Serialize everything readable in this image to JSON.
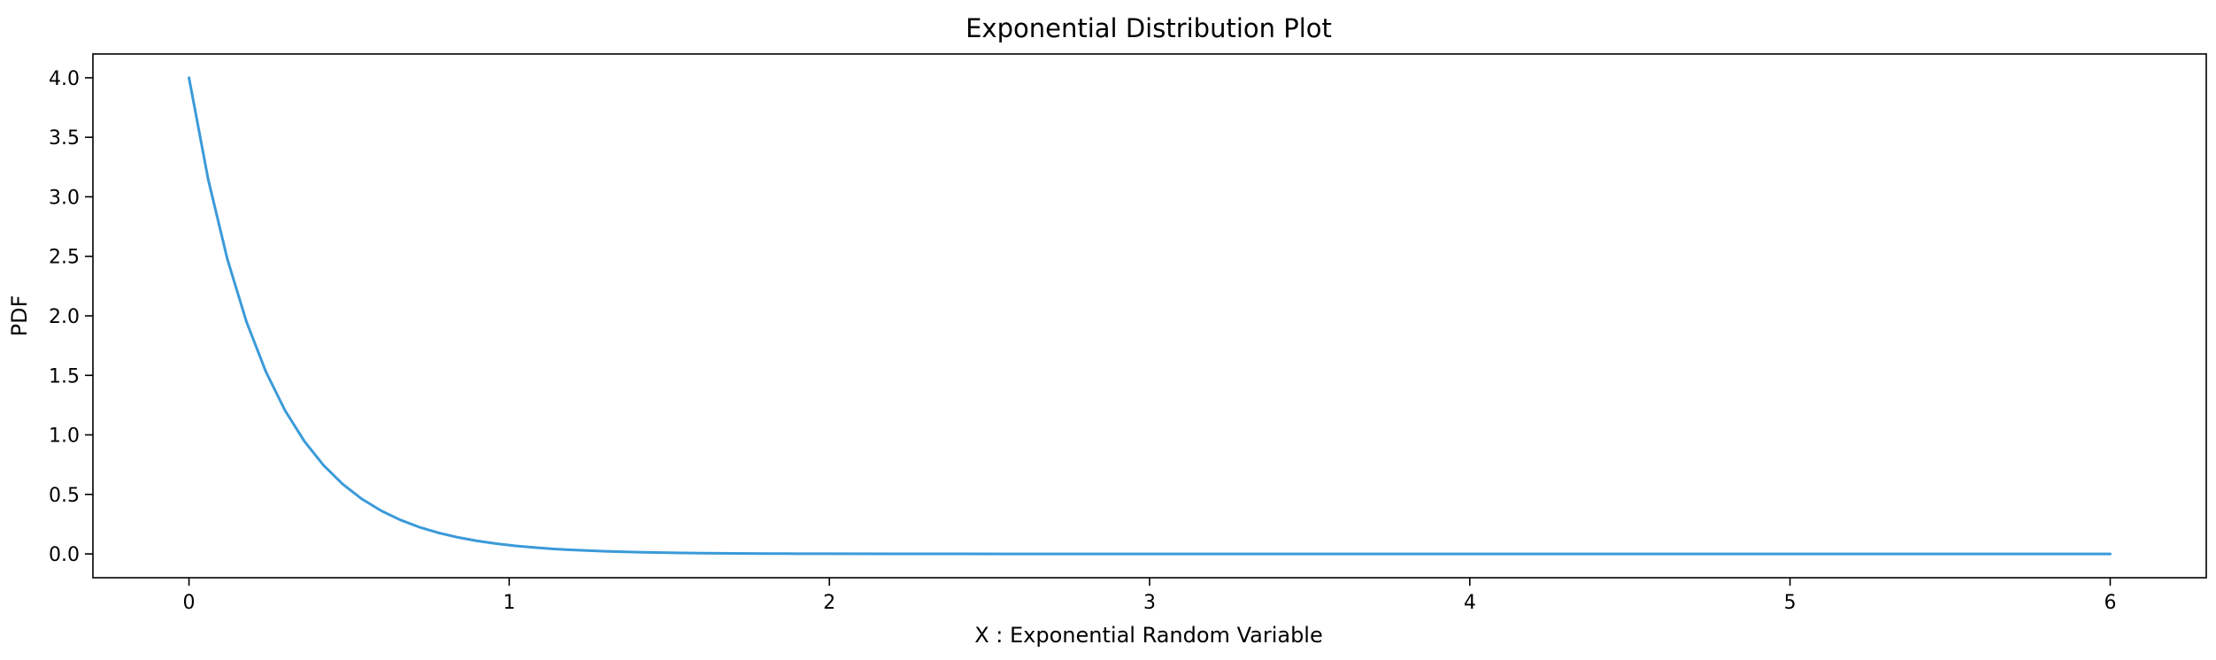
{
  "chart_data": {
    "type": "line",
    "title": "Exponential Distribution Plot",
    "xlabel": "X : Exponential Random Variable",
    "ylabel": "PDF",
    "xlim": [
      -0.3,
      6.3
    ],
    "ylim": [
      -0.2,
      4.2
    ],
    "xticks": [
      0,
      1,
      2,
      3,
      4,
      5,
      6
    ],
    "xtick_labels": [
      "0",
      "1",
      "2",
      "3",
      "4",
      "5",
      "6"
    ],
    "yticks": [
      0.0,
      0.5,
      1.0,
      1.5,
      2.0,
      2.5,
      3.0,
      3.5,
      4.0
    ],
    "ytick_labels": [
      "0.0",
      "0.5",
      "1.0",
      "1.5",
      "2.0",
      "2.5",
      "3.0",
      "3.5",
      "4.0"
    ],
    "grid": false,
    "series": [
      {
        "color": "#3a9ad9",
        "x": [
          0.0,
          0.06,
          0.12,
          0.18,
          0.24,
          0.3,
          0.36,
          0.42,
          0.48,
          0.54,
          0.6,
          0.66,
          0.72,
          0.78,
          0.84,
          0.9,
          0.96,
          1.02,
          1.08,
          1.14,
          1.2,
          1.3,
          1.4,
          1.5,
          1.6,
          1.7,
          1.8,
          1.9,
          2.0,
          2.2,
          2.4,
          2.6,
          2.8,
          3.0,
          3.5,
          4.0,
          4.5,
          5.0,
          5.5,
          6.0
        ],
        "y": [
          4.0,
          3.1465,
          2.4751,
          1.947,
          1.5316,
          1.2048,
          0.9477,
          0.7455,
          0.5864,
          0.4613,
          0.3629,
          0.2855,
          0.2245,
          0.1766,
          0.1389,
          0.1093,
          0.086,
          0.0676,
          0.0532,
          0.0419,
          0.0329,
          0.0221,
          0.0148,
          0.0099,
          0.0066,
          0.0045,
          0.003,
          0.002,
          0.0013,
          0.0006,
          0.0003,
          0.0001,
          0.0001,
          0.0,
          0.0,
          0.0,
          0.0,
          0.0,
          0.0,
          0.0
        ]
      }
    ]
  }
}
